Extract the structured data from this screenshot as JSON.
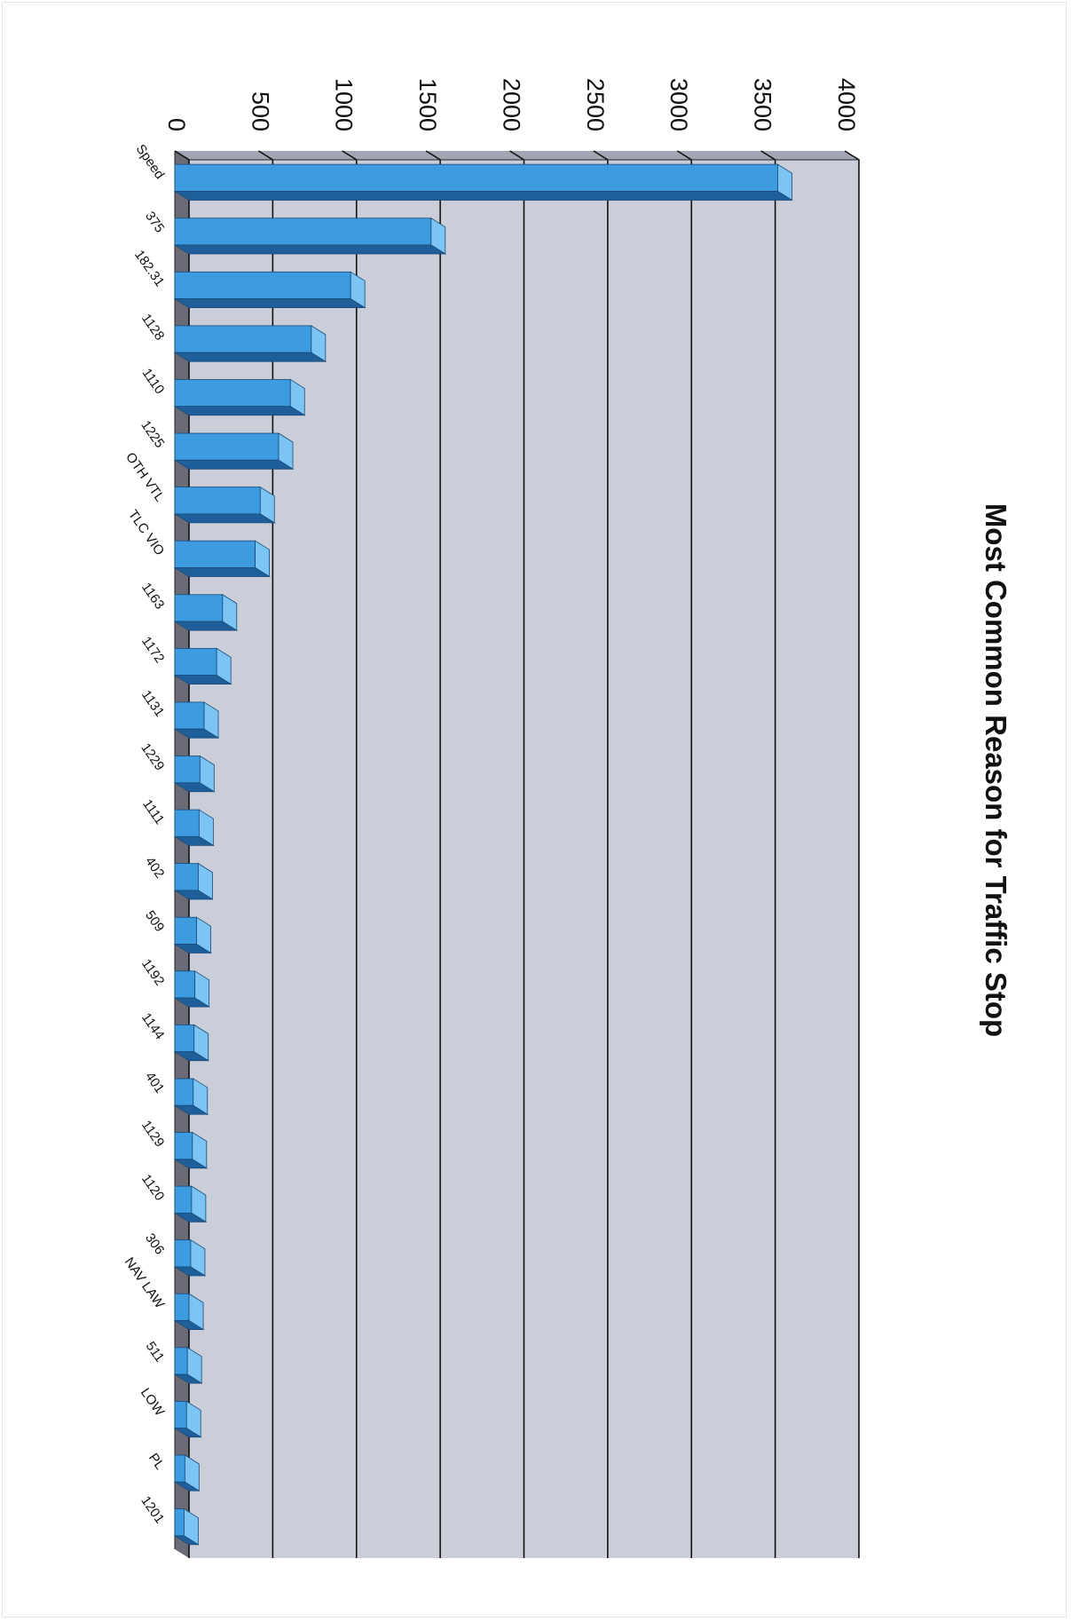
{
  "chart_data": {
    "type": "bar",
    "orientation": "horizontal",
    "three_d": true,
    "title": "Most Common Reason for Traffic Stop",
    "xlabel": "",
    "ylabel": "",
    "xlim": [
      0,
      4000
    ],
    "ticks": [
      0,
      500,
      1000,
      1500,
      2000,
      2500,
      3000,
      3500,
      4000
    ],
    "tick_labels": [
      "0",
      "500",
      "1000",
      "1500",
      "2000",
      "2500",
      "3000",
      "3500",
      "4000"
    ],
    "grid": true,
    "legend": "none",
    "categories": [
      "Speed",
      "375",
      "182.31",
      "1128",
      "1110",
      "1225",
      "OTH VTL",
      "TLC VIO",
      "1163",
      "1172",
      "1131",
      "1229",
      "1111",
      "402",
      "509",
      "1192",
      "1144",
      "401",
      "1129",
      "1120",
      "306",
      "NAV LAW",
      "511",
      "LOW",
      "PL",
      "1201"
    ],
    "values": [
      3600,
      1530,
      1050,
      815,
      690,
      620,
      510,
      480,
      285,
      250,
      175,
      150,
      145,
      140,
      130,
      120,
      115,
      110,
      105,
      100,
      95,
      85,
      75,
      70,
      60,
      55
    ],
    "colors": {
      "bar_face": "#3d9be0",
      "bar_top": "#7cc4f4",
      "bar_side": "#1f5f99",
      "plot_back": "#c9ced9",
      "plot_floor": "#6b6b78",
      "plot_wall": "#a2a6b4",
      "gridline": "#111111"
    }
  }
}
